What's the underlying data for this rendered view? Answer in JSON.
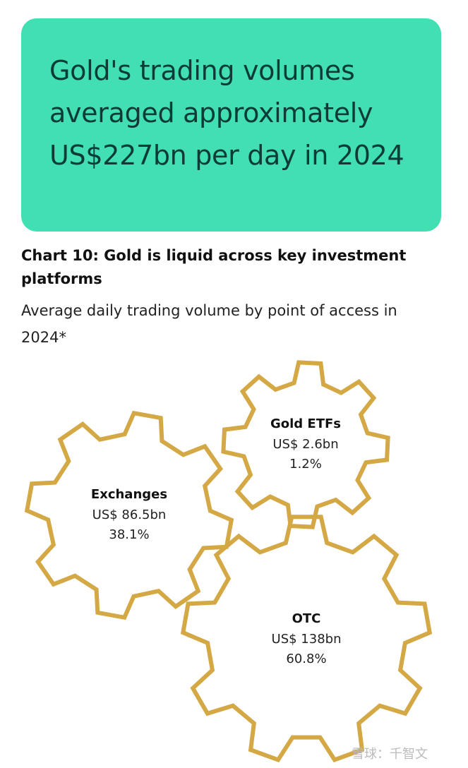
{
  "hero": {
    "title": "Gold's trading volumes averaged approximately US$227bn per day in 2024"
  },
  "chart": {
    "title": "Chart 10: Gold is liquid across key investment platforms",
    "subtitle": "Average daily trading volume by point of access in 2024*"
  },
  "chart_data": {
    "type": "gear-infographic",
    "title": "Chart 10: Gold is liquid across key investment platforms",
    "subtitle": "Average daily trading volume by point of access in 2024*",
    "categories": [
      "Exchanges",
      "Gold ETFs",
      "OTC"
    ],
    "values_label": [
      "US$ 86.5bn",
      "US$ 2.6bn",
      "US$ 138bn"
    ],
    "values": [
      86.5,
      2.6,
      138
    ],
    "unit": "US$ bn",
    "shares_label": [
      "38.1%",
      "1.2%",
      "60.8%"
    ],
    "shares": [
      38.1,
      1.2,
      60.8
    ],
    "color": "#d4a844"
  },
  "watermark": "雪球：千智文"
}
